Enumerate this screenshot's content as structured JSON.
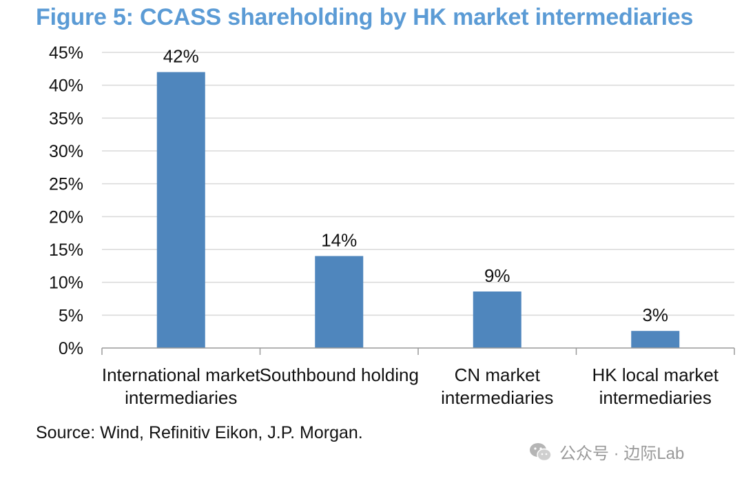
{
  "title": "Figure 5: CCASS shareholding by HK market intermediaries",
  "source": "Source: Wind, Refinitiv Eikon, J.P. Morgan.",
  "watermark": {
    "text": "公众号 · 边际Lab",
    "icon": "wechat-icon"
  },
  "colors": {
    "title": "#5b9bd5",
    "bar": "#4f86bd",
    "grid": "#d9d9d9",
    "axis": "#999999"
  },
  "chart_data": {
    "type": "bar",
    "categories": [
      [
        "International market",
        "intermediaries"
      ],
      [
        "Southbound holding"
      ],
      [
        "CN market",
        "intermediaries"
      ],
      [
        "HK local market",
        "intermediaries"
      ]
    ],
    "values": [
      42,
      14,
      8.6,
      2.6
    ],
    "data_labels": [
      "42%",
      "14%",
      "9%",
      "3%"
    ],
    "y_ticks": [
      "0%",
      "5%",
      "10%",
      "15%",
      "20%",
      "25%",
      "30%",
      "35%",
      "40%",
      "45%"
    ],
    "ylim": [
      0,
      45
    ],
    "ytick_step": 5,
    "grid": true,
    "legend": "none"
  }
}
